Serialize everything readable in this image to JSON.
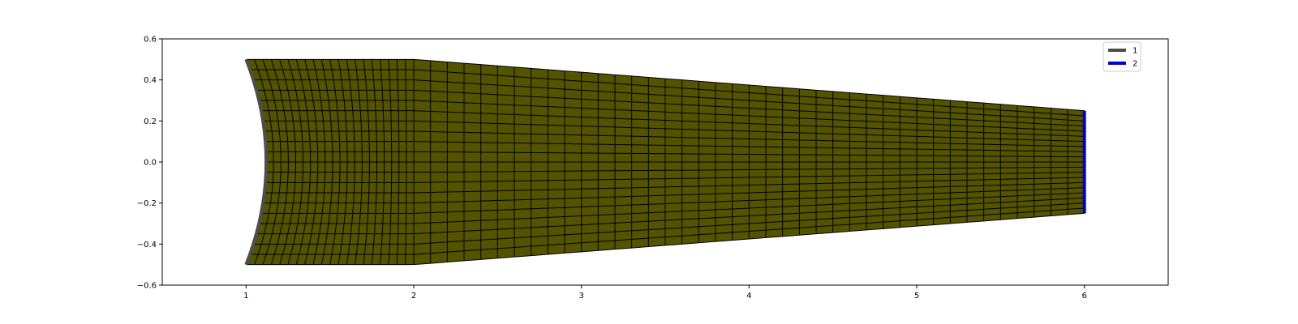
{
  "chart_data": {
    "type": "mesh",
    "xlim": [
      0.5,
      6.5
    ],
    "ylim": [
      -0.6,
      0.6
    ],
    "x_ticks": [
      1,
      2,
      3,
      4,
      5,
      6
    ],
    "x_tick_labels": [
      "1",
      "2",
      "3",
      "4",
      "5",
      "6"
    ],
    "y_ticks": [
      -0.6,
      -0.4,
      -0.2,
      0.0,
      0.2,
      0.4,
      0.6
    ],
    "y_tick_labels": [
      "−0.6",
      "−0.4",
      "−0.2",
      "0.0",
      "0.2",
      "0.4",
      "0.6"
    ],
    "grid": false,
    "legend": {
      "placement": "top-right",
      "entries": [
        {
          "label": "1",
          "color": "#4d4d4d"
        },
        {
          "label": "2",
          "color": "#0000cc"
        }
      ]
    },
    "mesh": {
      "fill_color": "#545400",
      "edge_color": "#000000",
      "columns": 60,
      "rows": 20,
      "arc": {
        "x_top": 1.0,
        "x_center": 1.12,
        "y_top": 0.5,
        "y_bottom": -0.5
      },
      "upper_edge": [
        [
          1.0,
          0.5
        ],
        [
          2.0,
          0.5
        ],
        [
          6.0,
          0.25
        ]
      ],
      "lower_edge": [
        [
          1.0,
          -0.5
        ],
        [
          2.0,
          -0.5
        ],
        [
          6.0,
          -0.25
        ]
      ],
      "right_edge": {
        "x": 6.0,
        "y_top": 0.25,
        "y_bottom": -0.25
      }
    },
    "boundaries": [
      {
        "label": "1",
        "location": "left arc",
        "color": "#4d4d4d"
      },
      {
        "label": "2",
        "location": "right edge",
        "color": "#0000cc"
      }
    ]
  }
}
